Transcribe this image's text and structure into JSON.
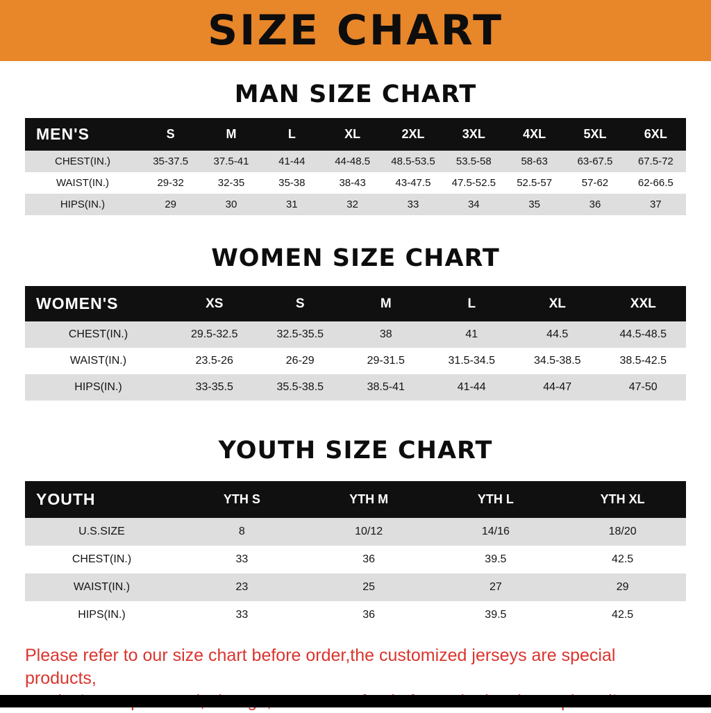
{
  "banner": {
    "title": "SIZE CHART"
  },
  "colors": {
    "banner_bg": "#E8862A",
    "table_header_bg": "#101010",
    "row_alt_bg": "#DEDEDE",
    "disclaimer_text": "#DA352E",
    "bottom_bar": "#000000"
  },
  "chart_data": [
    {
      "type": "table",
      "title": "MAN SIZE CHART",
      "label": "MEN'S",
      "columns": [
        "S",
        "M",
        "L",
        "XL",
        "2XL",
        "3XL",
        "4XL",
        "5XL",
        "6XL"
      ],
      "rows": [
        {
          "label": "CHEST(IN.)",
          "values": [
            "35-37.5",
            "37.5-41",
            "41-44",
            "44-48.5",
            "48.5-53.5",
            "53.5-58",
            "58-63",
            "63-67.5",
            "67.5-72"
          ]
        },
        {
          "label": "WAIST(IN.)",
          "values": [
            "29-32",
            "32-35",
            "35-38",
            "38-43",
            "43-47.5",
            "47.5-52.5",
            "52.5-57",
            "57-62",
            "62-66.5"
          ]
        },
        {
          "label": "HIPS(IN.)",
          "values": [
            "29",
            "30",
            "31",
            "32",
            "33",
            "34",
            "35",
            "36",
            "37"
          ]
        }
      ]
    },
    {
      "type": "table",
      "title": "WOMEN SIZE CHART",
      "label": "WOMEN'S",
      "columns": [
        "XS",
        "S",
        "M",
        "L",
        "XL",
        "XXL"
      ],
      "rows": [
        {
          "label": "CHEST(IN.)",
          "values": [
            "29.5-32.5",
            "32.5-35.5",
            "38",
            "41",
            "44.5",
            "44.5-48.5"
          ]
        },
        {
          "label": "WAIST(IN.)",
          "values": [
            "23.5-26",
            "26-29",
            "29-31.5",
            "31.5-34.5",
            "34.5-38.5",
            "38.5-42.5"
          ]
        },
        {
          "label": "HIPS(IN.)",
          "values": [
            "33-35.5",
            "35.5-38.5",
            "38.5-41",
            "41-44",
            "44-47",
            "47-50"
          ]
        }
      ]
    },
    {
      "type": "table",
      "title": "YOUTH SIZE CHART",
      "label": "YOUTH",
      "columns": [
        "YTH S",
        "YTH M",
        "YTH L",
        "YTH XL"
      ],
      "rows": [
        {
          "label": "U.S.SIZE",
          "values": [
            "8",
            "10/12",
            "14/16",
            "18/20"
          ]
        },
        {
          "label": "CHEST(IN.)",
          "values": [
            "33",
            "36",
            "39.5",
            "42.5"
          ]
        },
        {
          "label": "WAIST(IN.)",
          "values": [
            "23",
            "25",
            "27",
            "29"
          ]
        },
        {
          "label": "HIPS(IN.)",
          "values": [
            "33",
            "36",
            "39.5",
            "42.5"
          ]
        }
      ]
    }
  ],
  "footer": {
    "line1": "Please refer to our size chart before order,the customized jerseys are special products,",
    "line2": "we don't accept cancel, change, teturn or refund after order has been placed!"
  }
}
